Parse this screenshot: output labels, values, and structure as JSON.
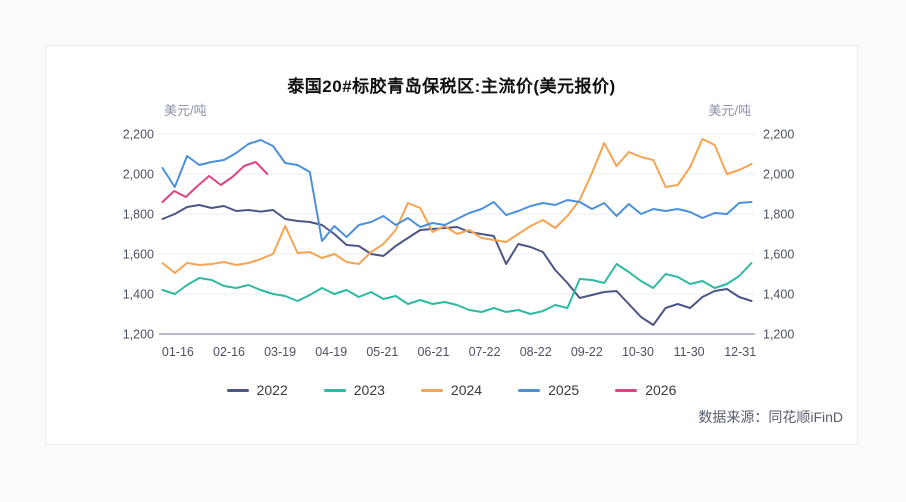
{
  "card": {
    "background": "#ffffff",
    "border_color": "#ededf0"
  },
  "title": "泰国20#标胶青岛保税区:主流价(美元报价)",
  "unit_label_left": "美元/吨",
  "unit_label_right": "美元/吨",
  "source_note": "数据来源：同花顺iFinD",
  "colors": {
    "axis_line": "#b6bccd",
    "gridline": "#ebedf3",
    "tick_text": "#4b5263"
  },
  "chart_data": {
    "type": "line",
    "title": "泰国20#标胶青岛保税区:主流价(美元报价)",
    "xlabel": "",
    "ylabel": "美元/吨",
    "ylim": [
      1200,
      2200
    ],
    "grid": true,
    "legend_position": "bottom",
    "x_range": [
      -0.33,
      11.25
    ],
    "x_tick_labels": [
      "01-16",
      "02-16",
      "03-19",
      "04-19",
      "05-21",
      "06-21",
      "07-22",
      "08-22",
      "09-22",
      "10-30",
      "11-30",
      "12-31"
    ],
    "y_tick_values": [
      2200,
      2000,
      1800,
      1600,
      1400,
      1200
    ],
    "y_tick_labels": [
      "2,200",
      "2,000",
      "1,800",
      "1,600",
      "1,400",
      "1,200"
    ],
    "series": [
      {
        "name": "2022",
        "color": "#4c5686",
        "x_start": -0.3,
        "x_step": 0.24,
        "values": [
          1775,
          1800,
          1835,
          1845,
          1830,
          1840,
          1815,
          1820,
          1812,
          1820,
          1775,
          1765,
          1760,
          1745,
          1700,
          1645,
          1640,
          1600,
          1590,
          1640,
          1680,
          1720,
          1725,
          1730,
          1735,
          1710,
          1700,
          1690,
          1550,
          1650,
          1635,
          1610,
          1520,
          1455,
          1380,
          1395,
          1410,
          1415,
          1350,
          1285,
          1245,
          1330,
          1350,
          1330,
          1385,
          1415,
          1425,
          1385,
          1365
        ]
      },
      {
        "name": "2023",
        "color": "#2fb9a2",
        "x_start": -0.3,
        "x_step": 0.24,
        "values": [
          1420,
          1400,
          1445,
          1480,
          1470,
          1440,
          1430,
          1445,
          1420,
          1400,
          1390,
          1365,
          1395,
          1430,
          1400,
          1420,
          1385,
          1410,
          1375,
          1390,
          1350,
          1370,
          1350,
          1360,
          1345,
          1320,
          1310,
          1330,
          1310,
          1320,
          1300,
          1315,
          1345,
          1330,
          1475,
          1470,
          1455,
          1550,
          1510,
          1465,
          1430,
          1500,
          1485,
          1450,
          1465,
          1430,
          1450,
          1490,
          1555
        ]
      },
      {
        "name": "2024",
        "color": "#f6a452",
        "x_start": -0.3,
        "x_step": 0.24,
        "values": [
          1555,
          1505,
          1555,
          1545,
          1550,
          1560,
          1545,
          1555,
          1575,
          1600,
          1740,
          1605,
          1610,
          1580,
          1600,
          1560,
          1550,
          1610,
          1650,
          1720,
          1855,
          1830,
          1710,
          1740,
          1700,
          1720,
          1680,
          1670,
          1660,
          1700,
          1740,
          1770,
          1730,
          1790,
          1870,
          2005,
          2155,
          2040,
          2110,
          2085,
          2070,
          1935,
          1945,
          2035,
          2175,
          2145,
          2000,
          2020,
          2050
        ]
      },
      {
        "name": "2025",
        "color": "#4b90d8",
        "x_start": -0.3,
        "x_step": 0.24,
        "values": [
          2030,
          1935,
          2090,
          2045,
          2060,
          2070,
          2105,
          2150,
          2170,
          2140,
          2055,
          2045,
          2010,
          1665,
          1740,
          1685,
          1745,
          1760,
          1790,
          1745,
          1780,
          1735,
          1755,
          1745,
          1775,
          1805,
          1825,
          1860,
          1795,
          1815,
          1840,
          1855,
          1845,
          1870,
          1860,
          1825,
          1855,
          1790,
          1850,
          1800,
          1825,
          1815,
          1825,
          1810,
          1780,
          1805,
          1800,
          1855,
          1860
        ]
      },
      {
        "name": "2026",
        "color": "#dd4384",
        "x_start": -0.3,
        "x_step": 0.2278,
        "values": [
          1860,
          1915,
          1885,
          1940,
          1990,
          1945,
          1985,
          2040,
          2060,
          2000
        ]
      }
    ]
  }
}
